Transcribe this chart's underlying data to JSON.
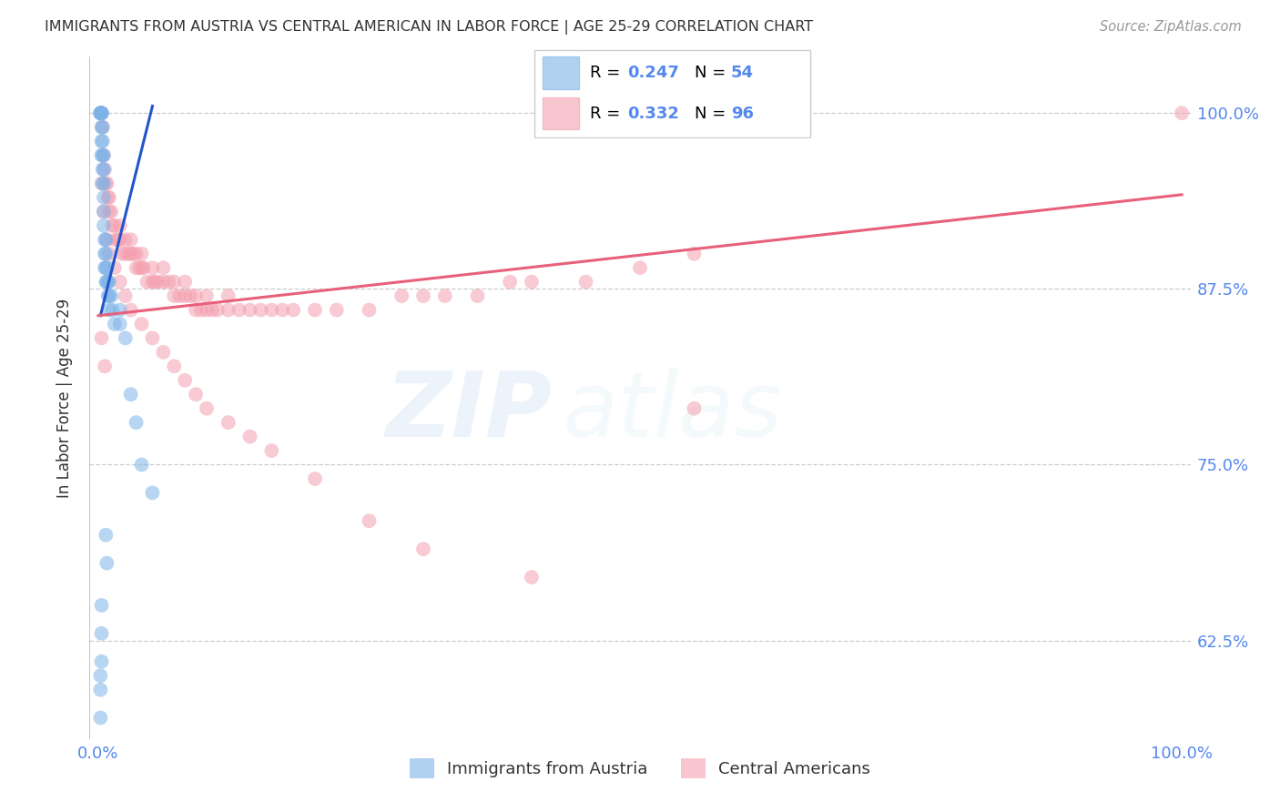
{
  "title": "IMMIGRANTS FROM AUSTRIA VS CENTRAL AMERICAN IN LABOR FORCE | AGE 25-29 CORRELATION CHART",
  "source": "Source: ZipAtlas.com",
  "ylabel": "In Labor Force | Age 25-29",
  "y_tick_vals": [
    0.625,
    0.75,
    0.875,
    1.0
  ],
  "y_tick_labels": [
    "62.5%",
    "75.0%",
    "87.5%",
    "100.0%"
  ],
  "x_tick_vals": [
    0.0,
    1.0
  ],
  "x_tick_labels": [
    "0.0%",
    "100.0%"
  ],
  "y_min": 0.555,
  "y_max": 1.04,
  "x_min": -0.008,
  "x_max": 1.008,
  "legend_r1": "R = 0.247",
  "legend_n1": "N = 54",
  "legend_r2": "R = 0.332",
  "legend_n2": "N = 96",
  "blue_color": "#7EB3E8",
  "pink_color": "#F4A0B0",
  "blue_line_color": "#2255CC",
  "pink_line_color": "#E8607A",
  "axis_label_color": "#5588EE",
  "title_color": "#333333",
  "source_color": "#999999",
  "grid_color": "#cccccc",
  "watermark_color": "#AACCEE",
  "legend_border_color": "#cccccc",
  "blue_scatter_x": [
    0.002,
    0.002,
    0.002,
    0.003,
    0.003,
    0.003,
    0.003,
    0.003,
    0.003,
    0.003,
    0.003,
    0.004,
    0.004,
    0.004,
    0.004,
    0.004,
    0.005,
    0.005,
    0.005,
    0.005,
    0.005,
    0.005,
    0.006,
    0.006,
    0.006,
    0.007,
    0.007,
    0.007,
    0.007,
    0.008,
    0.008,
    0.009,
    0.009,
    0.01,
    0.01,
    0.01,
    0.012,
    0.013,
    0.015,
    0.02,
    0.02,
    0.025,
    0.03,
    0.035,
    0.04,
    0.05,
    0.007,
    0.008,
    0.003,
    0.003,
    0.003,
    0.002,
    0.002,
    0.002
  ],
  "blue_scatter_y": [
    1.0,
    1.0,
    1.0,
    1.0,
    1.0,
    1.0,
    1.0,
    1.0,
    0.99,
    0.98,
    0.97,
    0.99,
    0.98,
    0.97,
    0.96,
    0.95,
    0.97,
    0.96,
    0.95,
    0.94,
    0.93,
    0.92,
    0.91,
    0.9,
    0.89,
    0.91,
    0.9,
    0.89,
    0.88,
    0.89,
    0.88,
    0.88,
    0.87,
    0.88,
    0.87,
    0.86,
    0.87,
    0.86,
    0.85,
    0.86,
    0.85,
    0.84,
    0.8,
    0.78,
    0.75,
    0.73,
    0.7,
    0.68,
    0.65,
    0.63,
    0.61,
    0.6,
    0.59,
    0.57
  ],
  "pink_scatter_x": [
    0.003,
    0.004,
    0.005,
    0.006,
    0.007,
    0.008,
    0.009,
    0.01,
    0.01,
    0.012,
    0.013,
    0.015,
    0.016,
    0.018,
    0.02,
    0.02,
    0.022,
    0.025,
    0.025,
    0.028,
    0.03,
    0.03,
    0.032,
    0.035,
    0.035,
    0.038,
    0.04,
    0.04,
    0.042,
    0.045,
    0.05,
    0.05,
    0.052,
    0.055,
    0.06,
    0.06,
    0.065,
    0.07,
    0.07,
    0.075,
    0.08,
    0.08,
    0.085,
    0.09,
    0.09,
    0.095,
    0.1,
    0.1,
    0.105,
    0.11,
    0.12,
    0.12,
    0.13,
    0.14,
    0.15,
    0.16,
    0.17,
    0.18,
    0.2,
    0.22,
    0.25,
    0.28,
    0.3,
    0.32,
    0.35,
    0.38,
    0.4,
    0.45,
    0.5,
    0.55,
    0.003,
    0.005,
    0.008,
    0.01,
    0.015,
    0.02,
    0.025,
    0.03,
    0.04,
    0.05,
    0.06,
    0.07,
    0.08,
    0.09,
    0.1,
    0.12,
    0.14,
    0.16,
    0.2,
    0.25,
    0.3,
    0.4,
    1.0,
    0.55,
    0.003,
    0.006
  ],
  "pink_scatter_y": [
    1.0,
    0.99,
    0.97,
    0.96,
    0.95,
    0.95,
    0.94,
    0.94,
    0.93,
    0.93,
    0.92,
    0.92,
    0.91,
    0.91,
    0.92,
    0.91,
    0.9,
    0.91,
    0.9,
    0.9,
    0.91,
    0.9,
    0.9,
    0.9,
    0.89,
    0.89,
    0.9,
    0.89,
    0.89,
    0.88,
    0.89,
    0.88,
    0.88,
    0.88,
    0.89,
    0.88,
    0.88,
    0.88,
    0.87,
    0.87,
    0.88,
    0.87,
    0.87,
    0.87,
    0.86,
    0.86,
    0.87,
    0.86,
    0.86,
    0.86,
    0.87,
    0.86,
    0.86,
    0.86,
    0.86,
    0.86,
    0.86,
    0.86,
    0.86,
    0.86,
    0.86,
    0.87,
    0.87,
    0.87,
    0.87,
    0.88,
    0.88,
    0.88,
    0.89,
    0.9,
    0.95,
    0.93,
    0.91,
    0.9,
    0.89,
    0.88,
    0.87,
    0.86,
    0.85,
    0.84,
    0.83,
    0.82,
    0.81,
    0.8,
    0.79,
    0.78,
    0.77,
    0.76,
    0.74,
    0.71,
    0.69,
    0.67,
    1.0,
    0.79,
    0.84,
    0.82
  ],
  "blue_trend_x": [
    0.002,
    0.05
  ],
  "blue_trend_y": [
    0.856,
    1.005
  ],
  "pink_trend_x": [
    0.0,
    1.0
  ],
  "pink_trend_y": [
    0.856,
    0.942
  ]
}
